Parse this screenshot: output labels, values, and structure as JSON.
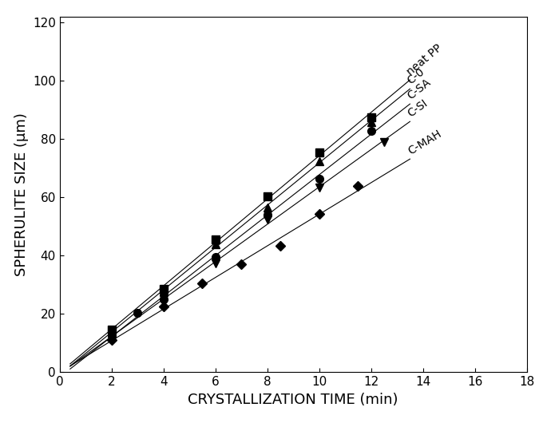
{
  "chart_data": {
    "type": "scatter",
    "x_label": "CRYSTALLIZATION TIME (min)",
    "y_label": "SPHERULITE SIZE (μm)",
    "xlim": [
      0,
      18
    ],
    "xticks": [
      0,
      2,
      4,
      6,
      8,
      10,
      12,
      14,
      16,
      18
    ],
    "ylim": [
      0,
      122
    ],
    "yticks": [
      0,
      20,
      40,
      60,
      80,
      100,
      120
    ],
    "grid": false,
    "trend_x": [
      0.4,
      13.5
    ],
    "series": [
      {
        "name": "neat PP",
        "color": "#000000",
        "marker": "square",
        "x": [
          2,
          4,
          6,
          8,
          10,
          12
        ],
        "values": [
          14.5,
          28.5,
          45.5,
          60.5,
          75.5,
          87.5
        ]
      },
      {
        "name": "C-0",
        "color": "#000000",
        "marker": "triangle_up",
        "x": [
          2,
          4,
          6,
          8,
          10,
          12
        ],
        "values": [
          13.5,
          28,
          44,
          56.5,
          72.5,
          86
        ]
      },
      {
        "name": "C-SA",
        "color": "#000000",
        "marker": "circle",
        "x": [
          2,
          3,
          4,
          6,
          8,
          10,
          12
        ],
        "values": [
          12.5,
          20.5,
          25,
          39.5,
          54,
          66.5,
          83
        ]
      },
      {
        "name": "C-SI",
        "color": "#000000",
        "marker": "triangle_down",
        "x": [
          2,
          4,
          6,
          8,
          10,
          12.5
        ],
        "values": [
          12,
          25,
          37.5,
          52.5,
          63.5,
          79
        ]
      },
      {
        "name": "C-MAH",
        "color": "#000000",
        "marker": "diamond",
        "x": [
          2,
          4,
          5.5,
          7,
          8.5,
          10,
          11.5
        ],
        "values": [
          11,
          22.5,
          30.5,
          37,
          43.5,
          54.5,
          64
        ]
      }
    ]
  }
}
